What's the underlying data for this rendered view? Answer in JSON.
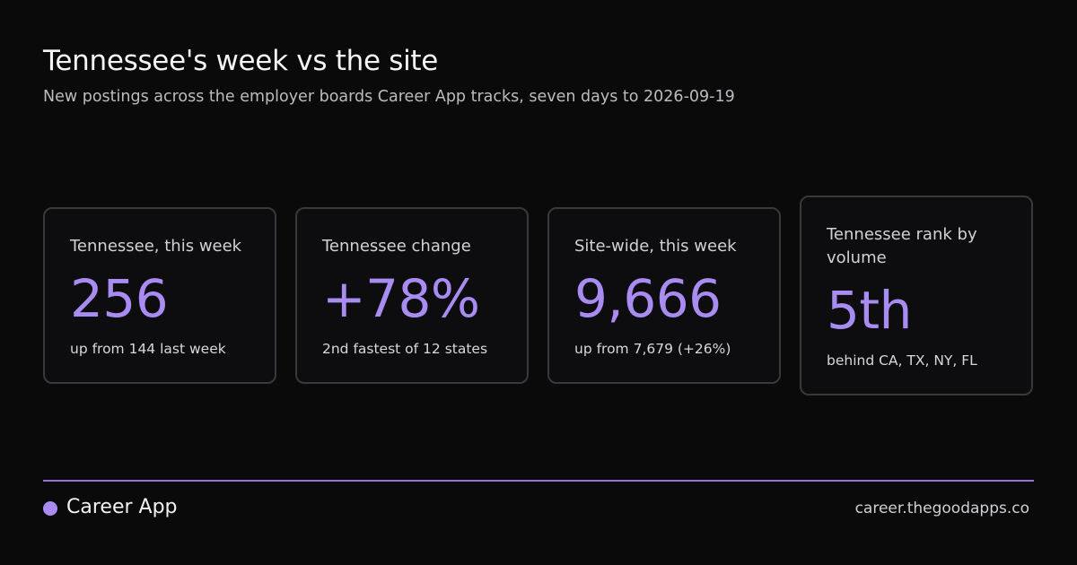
{
  "header": {
    "title": "Tennessee's week vs the site",
    "subtitle": "New postings across the employer boards Career App tracks, seven days to 2026-09-19"
  },
  "cards": [
    {
      "label": "Tennessee, this week",
      "value": "256",
      "note": "up from 144 last week"
    },
    {
      "label": "Tennessee change",
      "value": "+78%",
      "note": "2nd fastest of 12 states"
    },
    {
      "label": "Site-wide, this week",
      "value": "9,666",
      "note": "up from 7,679 (+26%)"
    },
    {
      "label": "Tennessee rank by volume",
      "value": "5th",
      "note": "behind CA, TX, NY, FL"
    }
  ],
  "footer": {
    "brand": "Career App",
    "url": "career.thegoodapps.co"
  }
}
